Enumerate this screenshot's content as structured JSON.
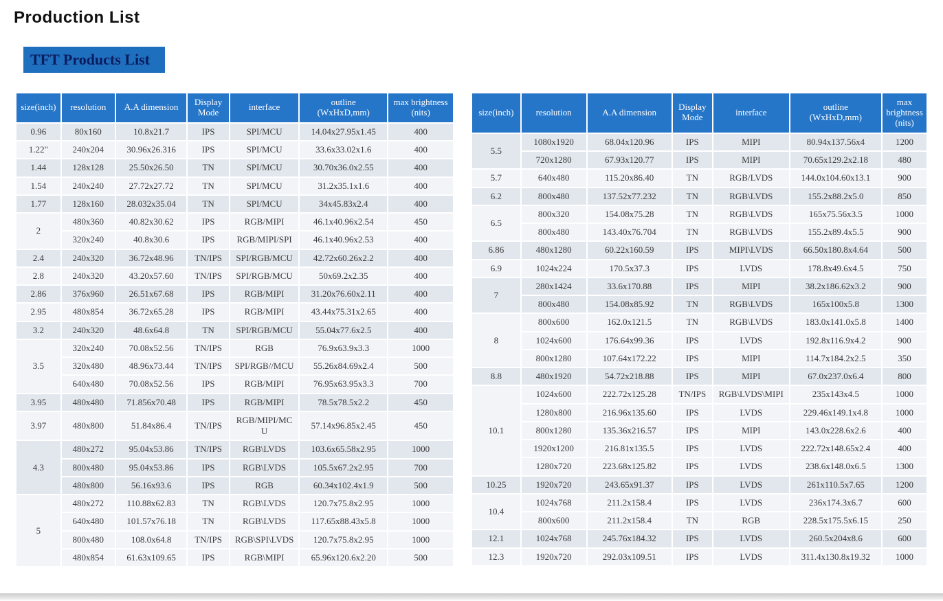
{
  "page_title": "Production List",
  "section_title": "TFT Products List",
  "colors": {
    "header_bg": "#2575c8",
    "header_fg": "#ffffff",
    "row_even_bg": "#e2e7ed",
    "row_odd_bg": "#f2f4f8",
    "section_title_bg": "#1f6fbf",
    "section_title_fg": "#0b1c5e"
  },
  "columns": [
    {
      "key": "size",
      "label": "size(inch)"
    },
    {
      "key": "resolution",
      "label": "resolution"
    },
    {
      "key": "aa",
      "label": "A.A dimension"
    },
    {
      "key": "mode",
      "label": "Display\nMode"
    },
    {
      "key": "interface",
      "label": "interface"
    },
    {
      "key": "outline",
      "label": "outline\n(WxHxD,mm)"
    },
    {
      "key": "brightness",
      "label": "max brightness\n(nits)"
    }
  ],
  "columns_right_brightness_label": "max\nbrightness\n(nits)",
  "left_rows": [
    {
      "size": "0.96",
      "res": "80x160",
      "aa": "10.8x21.7",
      "mode": "IPS",
      "if": "SPI/MCU",
      "out": "14.04x27.95x1.45",
      "bri": "400",
      "band": 0
    },
    {
      "size": "1.22\"",
      "res": "240x204",
      "aa": "30.96x26.316",
      "mode": "IPS",
      "if": "SPI/MCU",
      "out": "33.6x33.02x1.6",
      "bri": "400",
      "band": 1
    },
    {
      "size": "1.44",
      "res": "128x128",
      "aa": "25.50x26.50",
      "mode": "TN",
      "if": "SPI/MCU",
      "out": "30.70x36.0x2.55",
      "bri": "400",
      "band": 0
    },
    {
      "size": "1.54",
      "res": "240x240",
      "aa": "27.72x27.72",
      "mode": "TN",
      "if": "SPI/MCU",
      "out": "31.2x35.1x1.6",
      "bri": "400",
      "band": 1
    },
    {
      "size": "1.77",
      "res": "128x160",
      "aa": "28.032x35.04",
      "mode": "TN",
      "if": "SPI/MCU",
      "out": "34x45.83x2.4",
      "bri": "400",
      "band": 0
    },
    {
      "size": "2",
      "rowspan": 2,
      "res": "480x360",
      "aa": "40.82x30.62",
      "mode": "IPS",
      "if": "RGB/MIPI",
      "out": "46.1x40.96x2.54",
      "bri": "450",
      "band": 1
    },
    {
      "res": "320x240",
      "aa": "40.8x30.6",
      "mode": "IPS",
      "if": "RGB/MIPI/SPI",
      "out": "46.1x40.96x2.53",
      "bri": "400",
      "band": 1
    },
    {
      "size": "2.4",
      "res": "240x320",
      "aa": "36.72x48.96",
      "mode": "TN/IPS",
      "if": "SPI/RGB/MCU",
      "out": "42.72x60.26x2.2",
      "bri": "400",
      "band": 0
    },
    {
      "size": "2.8",
      "res": "240x320",
      "aa": "43.20x57.60",
      "mode": "TN/IPS",
      "if": "SPI/RGB/MCU",
      "out": "50x69.2x2.35",
      "bri": "400",
      "band": 1
    },
    {
      "size": "2.86",
      "res": "376x960",
      "aa": "26.51x67.68",
      "mode": "IPS",
      "if": "RGB/MIPI",
      "out": "31.20x76.60x2.11",
      "bri": "400",
      "band": 0
    },
    {
      "size": "2.95",
      "res": "480x854",
      "aa": "36.72x65.28",
      "mode": "IPS",
      "if": "RGB/MIPI",
      "out": "43.44x75.31x2.65",
      "bri": "400",
      "band": 1
    },
    {
      "size": "3.2",
      "res": "240x320",
      "aa": "48.6x64.8",
      "mode": "TN",
      "if": "SPI/RGB/MCU",
      "out": "55.04x77.6x2.5",
      "bri": "400",
      "band": 0
    },
    {
      "size": "3.5",
      "rowspan": 3,
      "res": "320x240",
      "aa": "70.08x52.56",
      "mode": "TN/IPS",
      "if": "RGB",
      "out": "76.9x63.9x3.3",
      "bri": "1000",
      "band": 1
    },
    {
      "res": "320x480",
      "aa": "48.96x73.44",
      "mode": "TN/IPS",
      "if": "SPI/RGB//MCU",
      "out": "55.26x84.69x2.4",
      "bri": "500",
      "band": 1
    },
    {
      "res": "640x480",
      "aa": "70.08x52.56",
      "mode": "IPS",
      "if": "RGB/MIPI",
      "out": "76.95x63.95x3.3",
      "bri": "700",
      "band": 1
    },
    {
      "size": "3.95",
      "res": "480x480",
      "aa": "71.856x70.48",
      "mode": "IPS",
      "if": "RGB/MIPI",
      "out": "78.5x78.5x2.2",
      "bri": "450",
      "band": 0
    },
    {
      "size": "3.97",
      "res": "480x800",
      "aa": "51.84x86.4",
      "mode": "TN/IPS",
      "if": "RGB/MIPI/MC\nU",
      "out": "57.14x96.85x2.45",
      "bri": "450",
      "band": 1
    },
    {
      "size": "4.3",
      "rowspan": 3,
      "res": "480x272",
      "aa": "95.04x53.86",
      "mode": "TN/IPS",
      "if": "RGB\\LVDS",
      "out": "103.6x65.58x2.95",
      "bri": "1000",
      "band": 0
    },
    {
      "res": "800x480",
      "aa": "95.04x53.86",
      "mode": "IPS",
      "if": "RGB\\LVDS",
      "out": "105.5x67.2x2.95",
      "bri": "700",
      "band": 0
    },
    {
      "res": "480x800",
      "aa": "56.16x93.6",
      "mode": "IPS",
      "if": "RGB",
      "out": "60.34x102.4x1.9",
      "bri": "500",
      "band": 0
    },
    {
      "size": "5",
      "rowspan": 4,
      "res": "480x272",
      "aa": "110.88x62.83",
      "mode": "TN",
      "if": "RGB\\LVDS",
      "out": "120.7x75.8x2.95",
      "bri": "1000",
      "band": 1
    },
    {
      "res": "640x480",
      "aa": "101.57x76.18",
      "mode": "TN",
      "if": "RGB\\LVDS",
      "out": "117.65x88.43x5.8",
      "bri": "1000",
      "band": 1
    },
    {
      "res": "800x480",
      "aa": "108.0x64.8",
      "mode": "TN/IPS",
      "if": "RGB\\SPI\\LVDS",
      "out": "120.7x75.8x2.95",
      "bri": "1000",
      "band": 1
    },
    {
      "res": "480x854",
      "aa": "61.63x109.65",
      "mode": "IPS",
      "if": "RGB\\MIPI",
      "out": "65.96x120.6x2.20",
      "bri": "500",
      "band": 1
    }
  ],
  "right_rows": [
    {
      "size": "5.5",
      "rowspan": 2,
      "res": "1080x1920",
      "aa": "68.04x120.96",
      "mode": "IPS",
      "if": "MIPI",
      "out": "80.94x137.56x4",
      "bri": "1200",
      "band": 0
    },
    {
      "res": "720x1280",
      "aa": "67.93x120.77",
      "mode": "IPS",
      "if": "MIPI",
      "out": "70.65x129.2x2.18",
      "bri": "480",
      "band": 0
    },
    {
      "size": "5.7",
      "res": "640x480",
      "aa": "115.20x86.40",
      "mode": "TN",
      "if": "RGB/LVDS",
      "out": "144.0x104.60x13.1",
      "bri": "900",
      "band": 1
    },
    {
      "size": "6.2",
      "res": "800x480",
      "aa": "137.52x77.232",
      "mode": "TN",
      "if": "RGB\\LVDS",
      "out": "155.2x88.2x5.0",
      "bri": "850",
      "band": 0
    },
    {
      "size": "6.5",
      "rowspan": 2,
      "res": "800x320",
      "aa": "154.08x75.28",
      "mode": "TN",
      "if": "RGB\\LVDS",
      "out": "165x75.56x3.5",
      "bri": "1000",
      "band": 1
    },
    {
      "res": "800x480",
      "aa": "143.40x76.704",
      "mode": "TN",
      "if": "RGB\\LVDS",
      "out": "155.2x89.4x5.5",
      "bri": "900",
      "band": 1
    },
    {
      "size": "6.86",
      "res": "480x1280",
      "aa": "60.22x160.59",
      "mode": "IPS",
      "if": "MIPI\\LVDS",
      "out": "66.50x180.8x4.64",
      "bri": "500",
      "band": 0
    },
    {
      "size": "6.9",
      "res": "1024x224",
      "aa": "170.5x37.3",
      "mode": "IPS",
      "if": "LVDS",
      "out": "178.8x49.6x4.5",
      "bri": "750",
      "band": 1
    },
    {
      "size": "7",
      "rowspan": 2,
      "res": "280x1424",
      "aa": "33.6x170.88",
      "mode": "IPS",
      "if": "MIPI",
      "out": "38.2x186.62x3.2",
      "bri": "900",
      "band": 0
    },
    {
      "res": "800x480",
      "aa": "154.08x85.92",
      "mode": "TN",
      "if": "RGB\\LVDS",
      "out": "165x100x5.8",
      "bri": "1300",
      "band": 0
    },
    {
      "size": "8",
      "rowspan": 3,
      "res": "800x600",
      "aa": "162.0x121.5",
      "mode": "TN",
      "if": "RGB\\LVDS",
      "out": "183.0x141.0x5.8",
      "bri": "1400",
      "band": 1
    },
    {
      "res": "1024x600",
      "aa": "176.64x99.36",
      "mode": "IPS",
      "if": "LVDS",
      "out": "192.8x116.9x4.2",
      "bri": "900",
      "band": 1
    },
    {
      "res": "800x1280",
      "aa": "107.64x172.22",
      "mode": "IPS",
      "if": "MIPI",
      "out": "114.7x184.2x2.5",
      "bri": "350",
      "band": 1
    },
    {
      "size": "8.8",
      "res": "480x1920",
      "aa": "54.72x218.88",
      "mode": "IPS",
      "if": "MIPI",
      "out": "67.0x237.0x6.4",
      "bri": "800",
      "band": 0
    },
    {
      "size": "10.1",
      "rowspan": 5,
      "res": "1024x600",
      "aa": "222.72x125.28",
      "mode": "TN/IPS",
      "if": "RGB\\LVDS\\MIPI",
      "out": "235x143x4.5",
      "bri": "1000",
      "band": 1
    },
    {
      "res": "1280x800",
      "aa": "216.96x135.60",
      "mode": "IPS",
      "if": "LVDS",
      "out": "229.46x149.1x4.8",
      "bri": "1000",
      "band": 1
    },
    {
      "res": "800x1280",
      "aa": "135.36x216.57",
      "mode": "IPS",
      "if": "MIPI",
      "out": "143.0x228.6x2.6",
      "bri": "400",
      "band": 1
    },
    {
      "res": "1920x1200",
      "aa": "216.81x135.5",
      "mode": "IPS",
      "if": "LVDS",
      "out": "222.72x148.65x2.4",
      "bri": "400",
      "band": 1
    },
    {
      "res": "1280x720",
      "aa": "223.68x125.82",
      "mode": "IPS",
      "if": "LVDS",
      "out": "238.6x148.0x6.5",
      "bri": "1300",
      "band": 1
    },
    {
      "size": "10.25",
      "res": "1920x720",
      "aa": "243.65x91.37",
      "mode": "IPS",
      "if": "LVDS",
      "out": "261x110.5x7.65",
      "bri": "1200",
      "band": 0
    },
    {
      "size": "10.4",
      "rowspan": 2,
      "res": "1024x768",
      "aa": "211.2x158.4",
      "mode": "IPS",
      "if": "LVDS",
      "out": "236x174.3x6.7",
      "bri": "600",
      "band": 1
    },
    {
      "res": "800x600",
      "aa": "211.2x158.4",
      "mode": "TN",
      "if": "RGB",
      "out": "228.5x175.5x6.15",
      "bri": "250",
      "band": 1
    },
    {
      "size": "12.1",
      "res": "1024x768",
      "aa": "245.76x184.32",
      "mode": "IPS",
      "if": "LVDS",
      "out": "260.5x204x8.6",
      "bri": "600",
      "band": 0
    },
    {
      "size": "12.3",
      "res": "1920x720",
      "aa": "292.03x109.51",
      "mode": "IPS",
      "if": "LVDS",
      "out": "311.4x130.8x19.32",
      "bri": "1000",
      "band": 1
    }
  ]
}
